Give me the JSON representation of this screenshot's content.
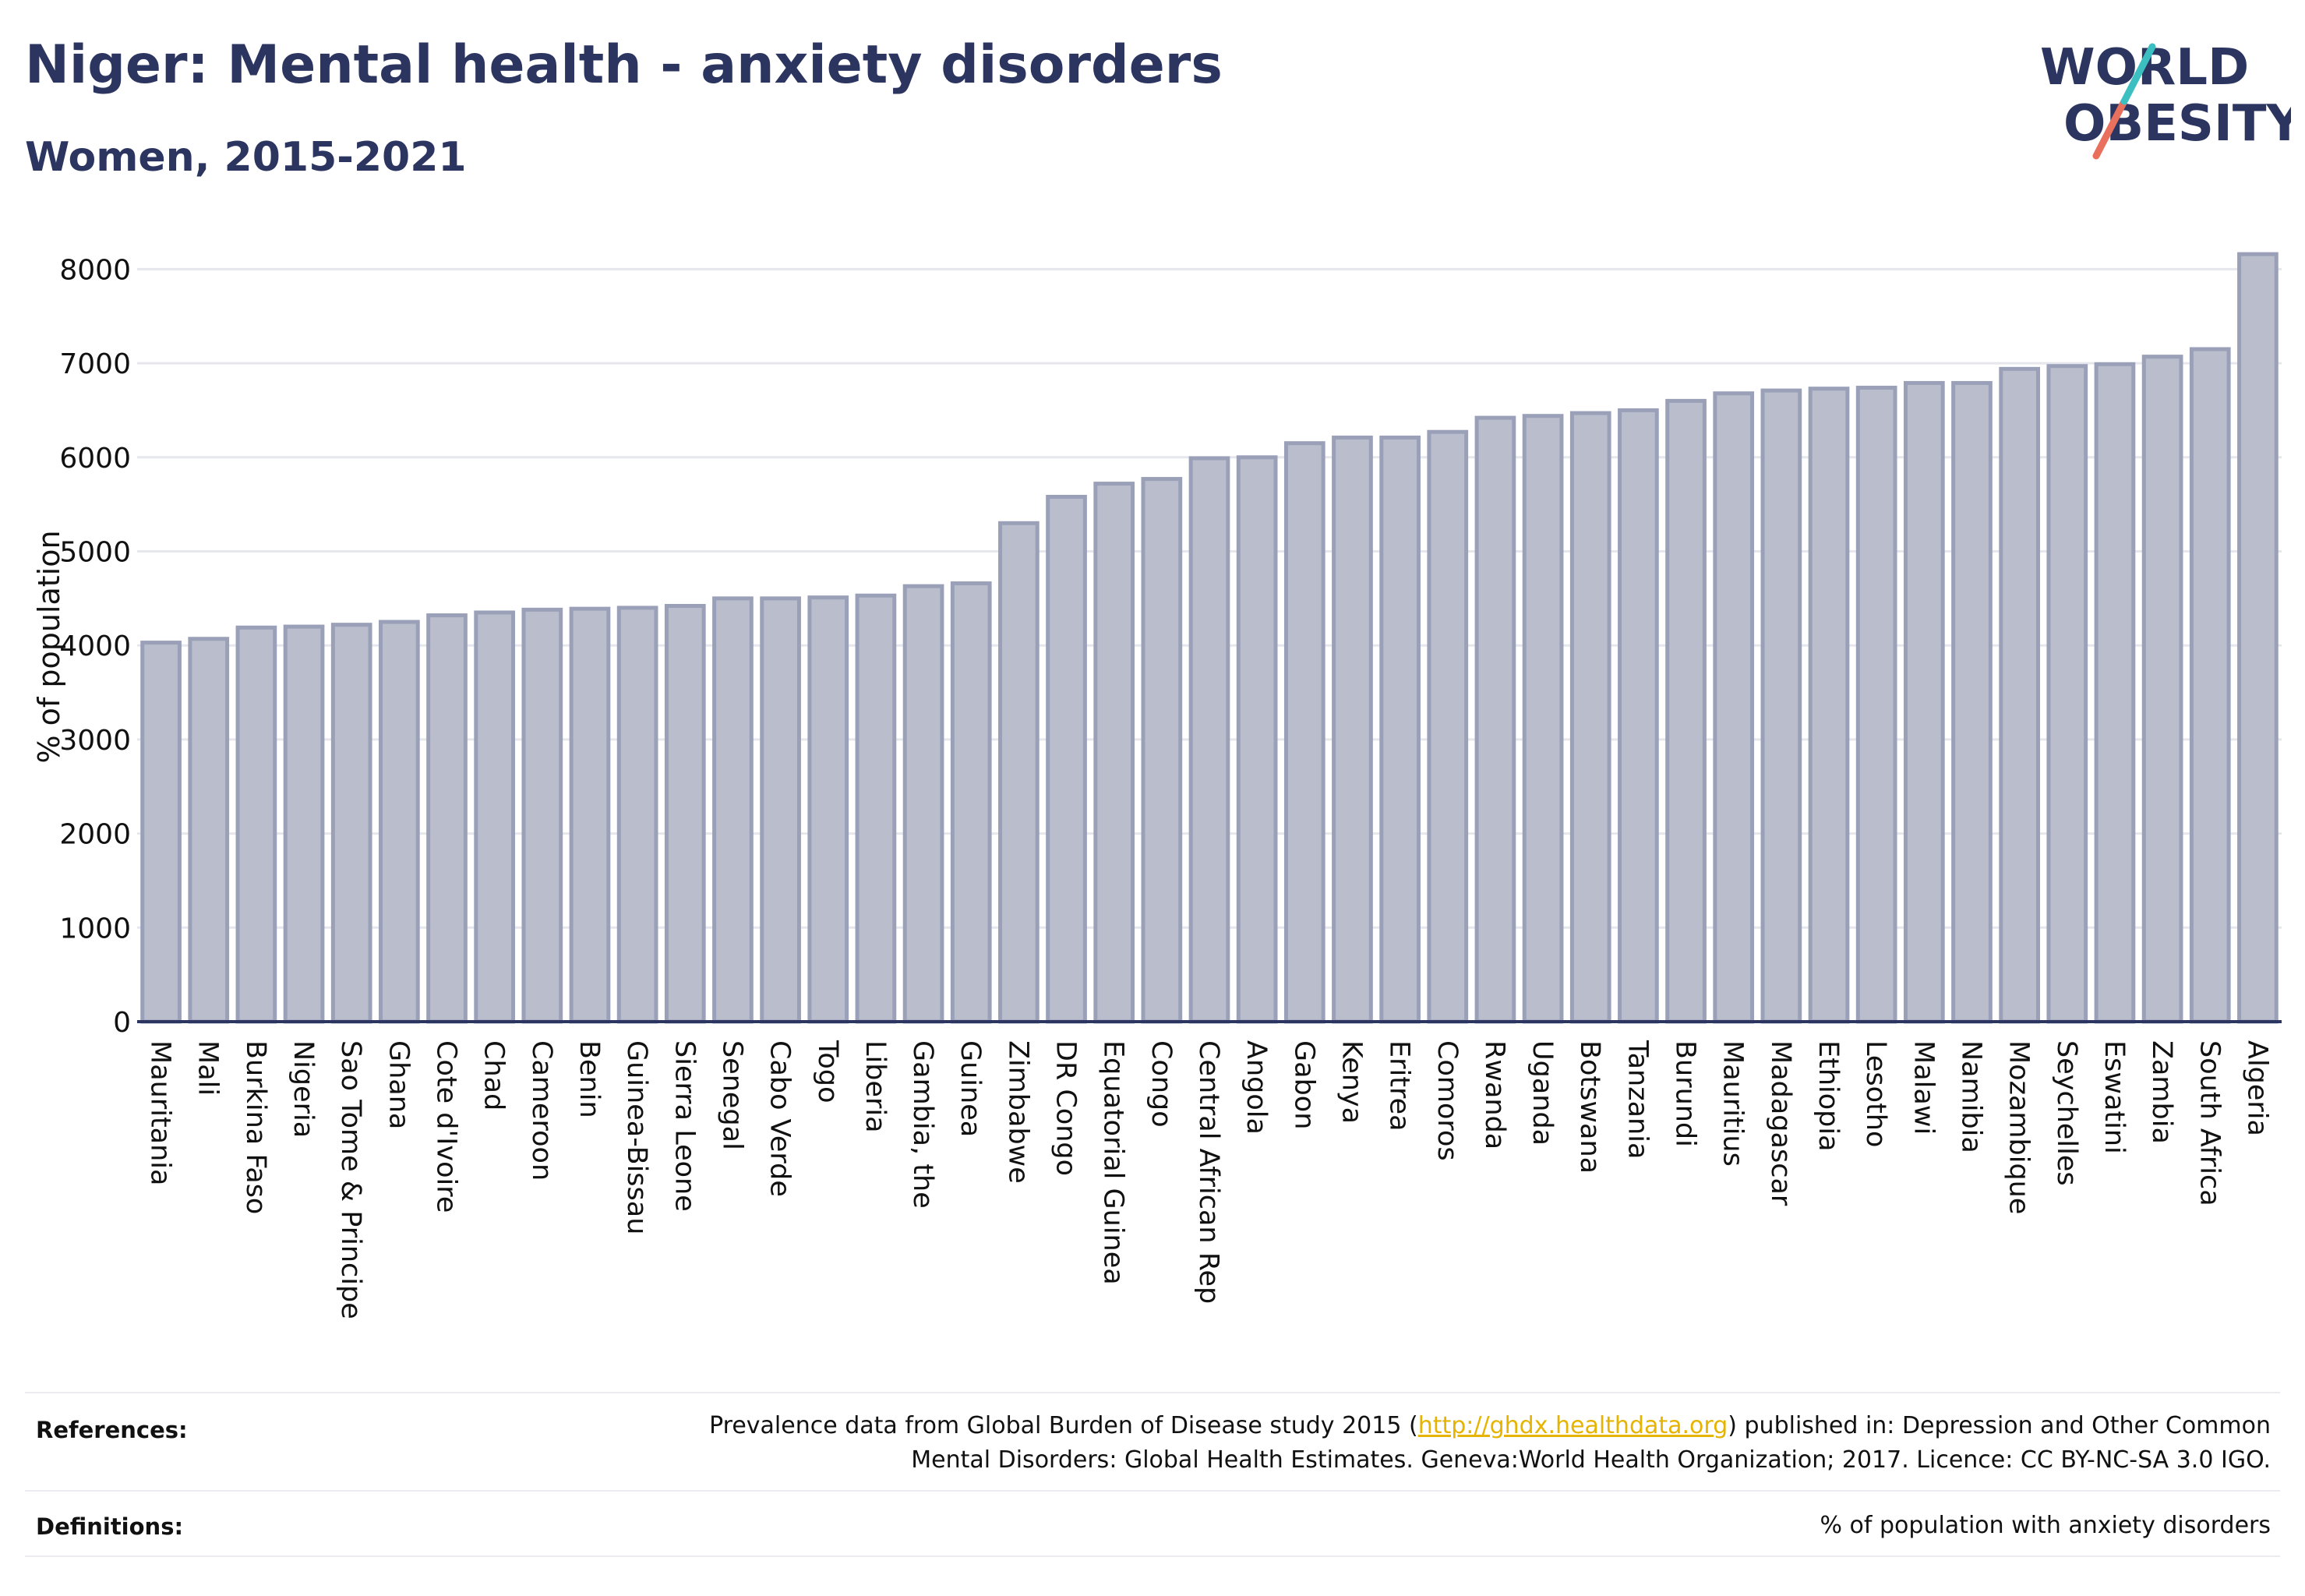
{
  "header": {
    "title": "Niger: Mental health - anxiety disorders",
    "subtitle": "Women, 2015-2021"
  },
  "logo": {
    "line1": "WORLD",
    "line2": "OBESITY"
  },
  "colors": {
    "title": "#2b3560",
    "bar_fill": "#b9bdcc",
    "bar_stroke": "#9aa0b8",
    "link": "#e6b400",
    "logo_teal": "#3bbfc0",
    "logo_coral": "#e8705d"
  },
  "chart_data": {
    "type": "bar",
    "ylabel": "% of population",
    "ylim": [
      0,
      8200
    ],
    "yticks": [
      0,
      1000,
      2000,
      3000,
      4000,
      5000,
      6000,
      7000,
      8000
    ],
    "grid": true,
    "categories": [
      "Mauritania",
      "Mali",
      "Burkina Faso",
      "Nigeria",
      "Sao Tome & Principe",
      "Ghana",
      "Cote d'Ivoire",
      "Chad",
      "Cameroon",
      "Benin",
      "Guinea-Bissau",
      "Sierra Leone",
      "Senegal",
      "Cabo Verde",
      "Togo",
      "Liberia",
      "Gambia, the",
      "Guinea",
      "Zimbabwe",
      "DR Congo",
      "Equatorial Guinea",
      "Congo",
      "Central African Rep",
      "Angola",
      "Gabon",
      "Kenya",
      "Eritrea",
      "Comoros",
      "Rwanda",
      "Uganda",
      "Botswana",
      "Tanzania",
      "Burundi",
      "Mauritius",
      "Madagascar",
      "Ethiopia",
      "Lesotho",
      "Malawi",
      "Namibia",
      "Mozambique",
      "Seychelles",
      "Eswatini",
      "Zambia",
      "South Africa",
      "Algeria"
    ],
    "values": [
      4030,
      4070,
      4190,
      4200,
      4220,
      4250,
      4320,
      4350,
      4380,
      4390,
      4400,
      4420,
      4500,
      4500,
      4510,
      4530,
      4630,
      4660,
      5300,
      5580,
      5720,
      5770,
      5990,
      6000,
      6150,
      6210,
      6210,
      6270,
      6420,
      6440,
      6470,
      6500,
      6600,
      6680,
      6710,
      6730,
      6740,
      6790,
      6790,
      6940,
      6970,
      6990,
      7070,
      7150,
      8160
    ]
  },
  "footer": {
    "references_label": "References:",
    "references_pre": "Prevalence data from Global Burden of Disease study 2015 (",
    "references_link": "http://ghdx.healthdata.org",
    "references_post": ") published in: Depression and Other Common",
    "references_line2": "Mental Disorders: Global Health Estimates. Geneva:World Health Organization; 2017. Licence: CC BY-NC-SA 3.0 IGO.",
    "definitions_label": "Definitions:",
    "definitions_text": "% of population with anxiety disorders"
  }
}
